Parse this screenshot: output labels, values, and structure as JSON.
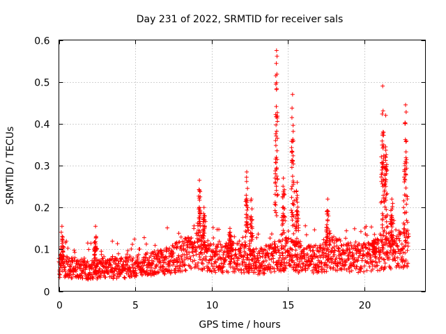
{
  "chart_data": {
    "type": "scatter",
    "title": "Day 231 of 2022, SRMTID for receiver sals",
    "xlabel": "GPS time / hours",
    "ylabel": "SRMTID / TECUs",
    "xlim": [
      0,
      24
    ],
    "ylim": [
      0,
      0.6
    ],
    "xticks": [
      0,
      5,
      10,
      15,
      20
    ],
    "xtick_labels": [
      "0",
      "5",
      "10",
      "15",
      "20"
    ],
    "yticks": [
      0,
      0.1,
      0.2,
      0.3,
      0.4,
      0.5,
      0.6
    ],
    "ytick_labels": [
      "0",
      "0.1",
      "0.2",
      "0.3",
      "0.4",
      "0.5",
      "0.6"
    ],
    "grid": true,
    "marker": "+",
    "color": "#ff0000",
    "background_level": [
      [
        0.0,
        0.06
      ],
      [
        1.0,
        0.055
      ],
      [
        2.0,
        0.05
      ],
      [
        3.0,
        0.055
      ],
      [
        4.0,
        0.055
      ],
      [
        5.0,
        0.06
      ],
      [
        6.0,
        0.065
      ],
      [
        7.0,
        0.07
      ],
      [
        8.0,
        0.085
      ],
      [
        9.0,
        0.1
      ],
      [
        10.0,
        0.08
      ],
      [
        11.0,
        0.08
      ],
      [
        12.0,
        0.08
      ],
      [
        13.0,
        0.07
      ],
      [
        14.0,
        0.08
      ],
      [
        15.0,
        0.09
      ],
      [
        16.0,
        0.075
      ],
      [
        17.0,
        0.08
      ],
      [
        18.0,
        0.09
      ],
      [
        19.0,
        0.08
      ],
      [
        20.0,
        0.08
      ],
      [
        21.0,
        0.09
      ],
      [
        22.0,
        0.1
      ],
      [
        22.9,
        0.1
      ]
    ],
    "spikes": [
      {
        "x": 0.2,
        "y": 0.155
      },
      {
        "x": 2.4,
        "y": 0.155
      },
      {
        "x": 9.2,
        "y": 0.265
      },
      {
        "x": 9.5,
        "y": 0.2
      },
      {
        "x": 11.2,
        "y": 0.15
      },
      {
        "x": 12.3,
        "y": 0.285
      },
      {
        "x": 12.6,
        "y": 0.22
      },
      {
        "x": 14.25,
        "y": 0.575
      },
      {
        "x": 14.7,
        "y": 0.27
      },
      {
        "x": 15.3,
        "y": 0.47
      },
      {
        "x": 15.6,
        "y": 0.26
      },
      {
        "x": 17.6,
        "y": 0.22
      },
      {
        "x": 20.6,
        "y": 0.12
      },
      {
        "x": 21.2,
        "y": 0.49
      },
      {
        "x": 21.4,
        "y": 0.42
      },
      {
        "x": 21.8,
        "y": 0.22
      },
      {
        "x": 22.7,
        "y": 0.445
      }
    ]
  }
}
